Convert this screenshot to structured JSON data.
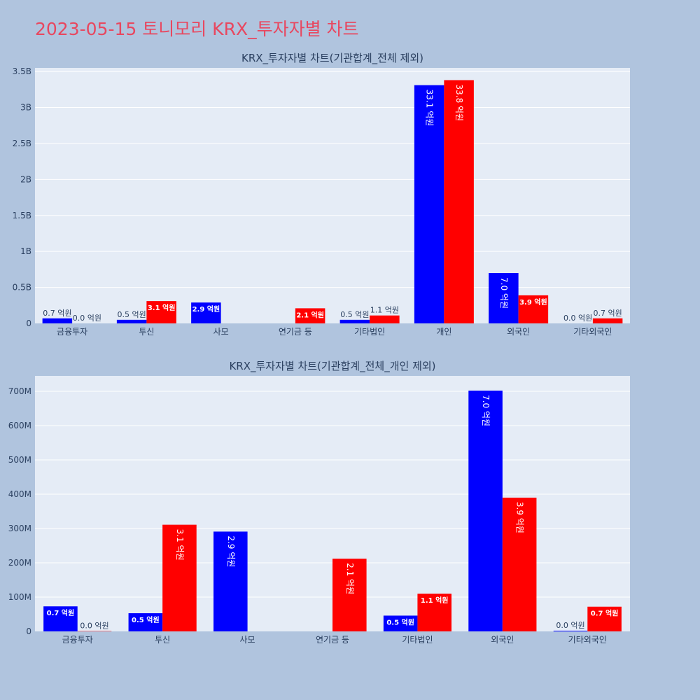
{
  "page": {
    "title": "2023-05-15 토니모리 KRX_투자자별 차트"
  },
  "colors": {
    "background": "#b0c4de",
    "plot_bg": "#e5ecf6",
    "buy": "#0000ff",
    "sell": "#ff0000",
    "title": "#e8475f",
    "text": "#2a3f5f"
  },
  "chart_data": [
    {
      "type": "bar",
      "title": "KRX_투자자별 차트(기관합계_전체 제외)",
      "categories": [
        "금융투자",
        "투신",
        "사모",
        "연기금 등",
        "기타법인",
        "개인",
        "외국인",
        "기타외국인"
      ],
      "series": [
        {
          "values": [
            70000000,
            50000000,
            290000000,
            0,
            50000000,
            3310000000,
            700000000,
            0
          ],
          "labels": [
            "0.7 억원",
            "0.5 억원",
            "2.9 억원",
            "",
            "0.5 억원",
            "33.1 억원",
            "7.0 억원",
            "0.0 억원"
          ]
        },
        {
          "values": [
            0,
            310000000,
            0,
            210000000,
            110000000,
            3380000000,
            390000000,
            70000000
          ],
          "labels": [
            "0.0 억원",
            "3.1 억원",
            "",
            "2.1 억원",
            "1.1 억원",
            "33.8 억원",
            "3.9 억원",
            "0.7 억원"
          ]
        }
      ],
      "yticks": [
        "0",
        "0.5B",
        "1B",
        "1.5B",
        "2B",
        "2.5B",
        "3B",
        "3.5B"
      ],
      "ylim": [
        0,
        3550000000
      ],
      "grid": true
    },
    {
      "type": "bar",
      "title": "KRX_투자자별 차트(기관합계_전체_개인 제외)",
      "categories": [
        "금융투자",
        "투신",
        "사모",
        "연기금 등",
        "기타법인",
        "외국인",
        "기타외국인"
      ],
      "series": [
        {
          "values": [
            73000000,
            53000000,
            291000000,
            0,
            46000000,
            702000000,
            2000000
          ],
          "labels": [
            "0.7 억원",
            "0.5 억원",
            "2.9 억원",
            "",
            "0.5 억원",
            "7.0 억원",
            "0.0 억원"
          ]
        },
        {
          "values": [
            1000000,
            311000000,
            0,
            212000000,
            110000000,
            390000000,
            72000000
          ],
          "labels": [
            "0.0 억원",
            "3.1 억원",
            "",
            "2.1 억원",
            "1.1 억원",
            "3.9 억원",
            "0.7 억원"
          ]
        }
      ],
      "yticks": [
        "0",
        "100M",
        "200M",
        "300M",
        "400M",
        "500M",
        "600M",
        "700M"
      ],
      "ylim": [
        0,
        745000000
      ],
      "grid": true
    }
  ]
}
